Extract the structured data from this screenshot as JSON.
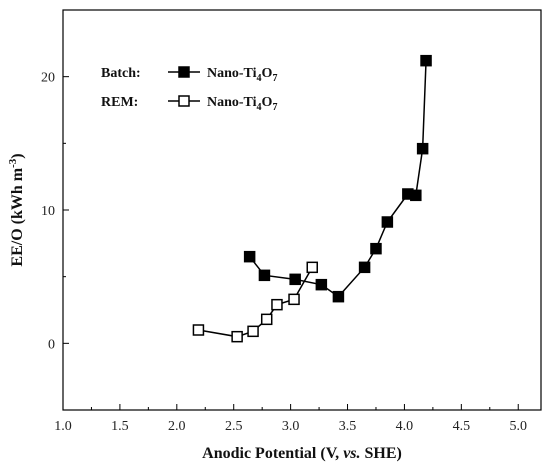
{
  "chart_data": {
    "type": "line",
    "xlabel_parts": {
      "before": "Anodic Potential (V, ",
      "italic": "vs.",
      "after": " SHE)"
    },
    "ylabel_parts": {
      "before": "EE/O (kWh m",
      "sup": "-3",
      "after": ")"
    },
    "xlim": [
      1.0,
      5.2
    ],
    "ylim": [
      -5,
      25
    ],
    "xticks": [
      "1.0",
      "1.5",
      "2.0",
      "2.5",
      "3.0",
      "3.5",
      "4.0",
      "4.5",
      "5.0"
    ],
    "yticks": [
      "0",
      "10",
      "20"
    ],
    "grid": false,
    "legend_position": "top-left",
    "series": [
      {
        "name": "Batch",
        "label_prefix": "Batch:",
        "label_material": {
          "base": "Nano-Ti",
          "sub1": "4",
          "mid": "O",
          "sub2": "7"
        },
        "marker": "filled-square",
        "x": [
          2.64,
          2.77,
          3.04,
          3.27,
          3.42,
          3.65,
          3.75,
          3.85,
          4.03,
          4.1,
          4.16,
          4.19
        ],
        "y": [
          6.5,
          5.1,
          4.8,
          4.4,
          3.5,
          5.7,
          7.1,
          9.1,
          11.2,
          11.1,
          14.6,
          21.2
        ]
      },
      {
        "name": "REM",
        "label_prefix": "REM:",
        "label_material": {
          "base": "Nano-Ti",
          "sub1": "4",
          "mid": "O",
          "sub2": "7"
        },
        "marker": "open-square",
        "x": [
          2.19,
          2.53,
          2.67,
          2.79,
          2.88,
          3.03,
          3.19
        ],
        "y": [
          1.0,
          0.5,
          0.9,
          1.8,
          2.9,
          3.3,
          5.7
        ]
      }
    ]
  }
}
